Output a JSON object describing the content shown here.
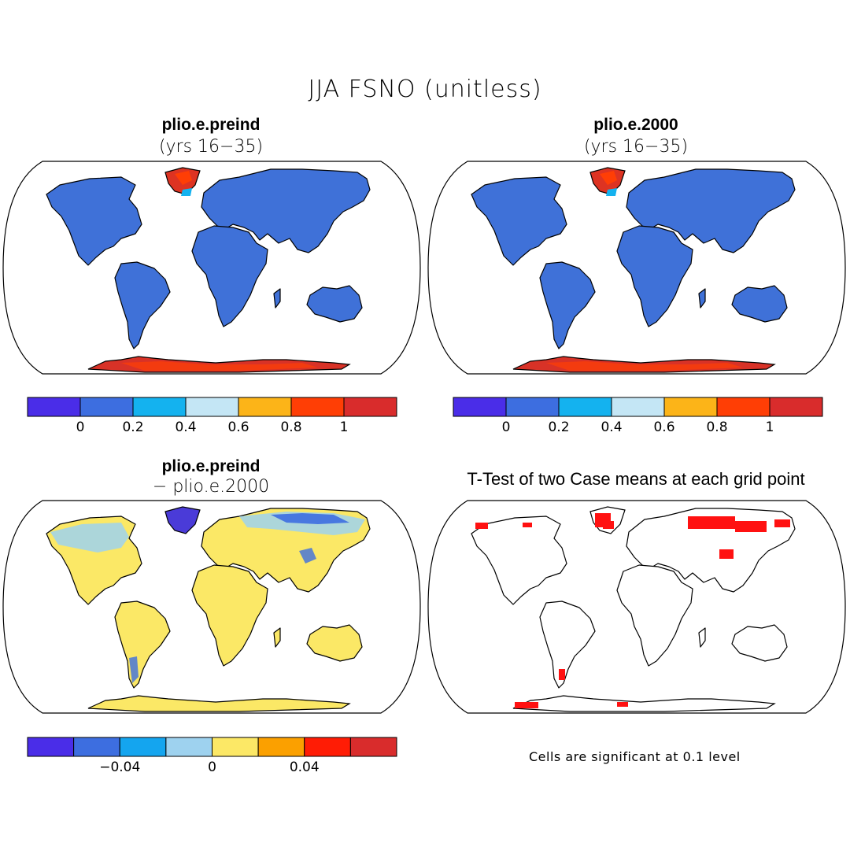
{
  "title": "JJA FSNO (unitless)",
  "panels": [
    {
      "id": "preind",
      "title": "plio.e.preind",
      "subtitle": "(yrs 16−35)",
      "land_color": "#3f71d8",
      "greenland_color": "#dd3322",
      "antarctica_color": "#d83227"
    },
    {
      "id": "e2000",
      "title": "plio.e.2000",
      "subtitle": "(yrs 16−35)",
      "land_color": "#3f71d8",
      "greenland_color": "#dd3322",
      "antarctica_color": "#d83227"
    },
    {
      "id": "diff",
      "title": "plio.e.preind",
      "subtitle": "− plio.e.2000",
      "land_color": "#fbe866",
      "greenland_color": "#4a3bd8",
      "antarctica_color": "#fbe866"
    },
    {
      "id": "ttest",
      "title": "T-Test of two Case means at each grid point",
      "note": "Cells are significant at 0.1 level",
      "signif_color": "#ff1111"
    }
  ],
  "colorbars": {
    "abs": {
      "colors": [
        "#4a2de8",
        "#3d6ee0",
        "#14b2ef",
        "#c4e6f5",
        "#fcb418",
        "#ff3e05",
        "#d92c2c"
      ],
      "labels": [
        "0",
        "0.2",
        "0.4",
        "0.6",
        "0.8",
        "1"
      ]
    },
    "diff": {
      "colors": [
        "#4a2de8",
        "#3d6ee0",
        "#14a5ef",
        "#9ed2ef",
        "#fce866",
        "#fba000",
        "#ff1c05",
        "#d92c2c"
      ],
      "labels": [
        "−0.04",
        "0",
        "0.04"
      ]
    }
  }
}
